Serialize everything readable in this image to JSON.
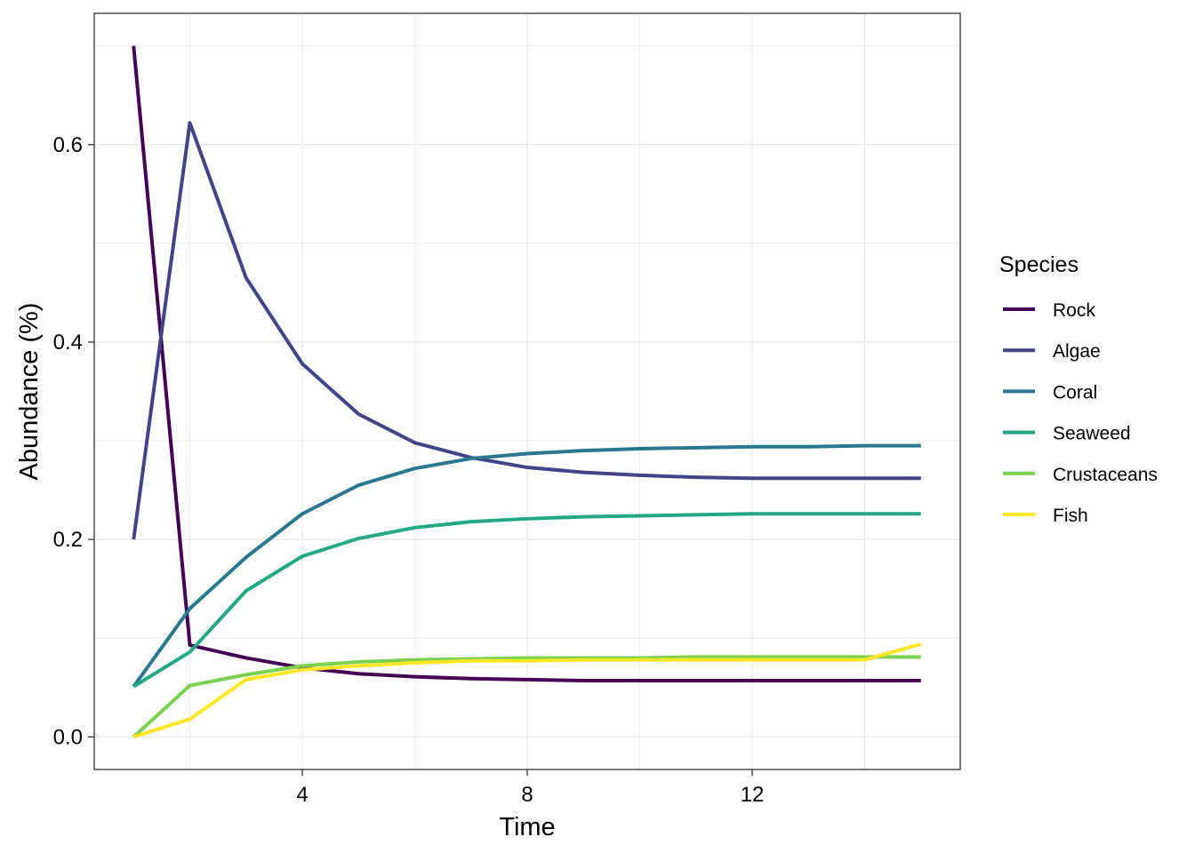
{
  "chart_data": {
    "type": "line",
    "xlabel": "Time",
    "ylabel": "Abundance (%)",
    "xlim": [
      0.3,
      15.7
    ],
    "ylim": [
      -0.033,
      0.733
    ],
    "x_major_ticks": [
      4,
      8,
      12
    ],
    "x_tick_labels": [
      "4",
      "8",
      "12"
    ],
    "x_minor_ticks": [
      2,
      6,
      10,
      14
    ],
    "y_major_ticks": [
      0.0,
      0.2,
      0.4,
      0.6
    ],
    "y_tick_labels": [
      "0.0",
      "0.2",
      "0.4",
      "0.6"
    ],
    "y_minor_ticks": [
      0.1,
      0.3,
      0.5,
      0.7
    ],
    "grid": true,
    "legend": {
      "title": "Species",
      "position": "right"
    },
    "x": [
      1,
      2,
      3,
      4,
      5,
      6,
      7,
      8,
      9,
      10,
      11,
      12,
      13,
      14,
      15
    ],
    "series": [
      {
        "name": "Rock",
        "color": "#440154",
        "values": [
          0.7,
          0.093,
          0.08,
          0.07,
          0.064,
          0.061,
          0.059,
          0.058,
          0.057,
          0.057,
          0.057,
          0.057,
          0.057,
          0.057,
          0.057
        ]
      },
      {
        "name": "Algae",
        "color": "#414487",
        "values": [
          0.2,
          0.622,
          0.465,
          0.378,
          0.327,
          0.298,
          0.283,
          0.273,
          0.268,
          0.265,
          0.263,
          0.262,
          0.262,
          0.262,
          0.262
        ]
      },
      {
        "name": "Coral",
        "color": "#2A788E",
        "values": [
          0.051,
          0.13,
          0.182,
          0.226,
          0.255,
          0.272,
          0.282,
          0.287,
          0.29,
          0.292,
          0.293,
          0.294,
          0.294,
          0.295,
          0.295
        ]
      },
      {
        "name": "Seaweed",
        "color": "#22A884",
        "values": [
          0.051,
          0.086,
          0.148,
          0.183,
          0.201,
          0.212,
          0.218,
          0.221,
          0.223,
          0.224,
          0.225,
          0.226,
          0.226,
          0.226,
          0.226
        ]
      },
      {
        "name": "Crustaceans",
        "color": "#7AD151",
        "values": [
          0.0,
          0.052,
          0.063,
          0.072,
          0.076,
          0.078,
          0.079,
          0.08,
          0.08,
          0.08,
          0.081,
          0.081,
          0.081,
          0.081,
          0.081
        ]
      },
      {
        "name": "Fish",
        "color": "#FDE725",
        "values": [
          0.0,
          0.018,
          0.058,
          0.068,
          0.072,
          0.075,
          0.077,
          0.077,
          0.078,
          0.078,
          0.078,
          0.078,
          0.078,
          0.078,
          0.094
        ]
      }
    ]
  }
}
